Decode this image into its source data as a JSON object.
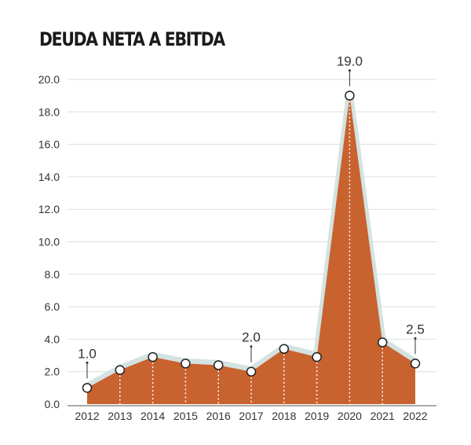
{
  "chart_data": {
    "type": "area",
    "title": "DEUDA NETA A EBITDA",
    "categories": [
      "2012",
      "2013",
      "2014",
      "2015",
      "2016",
      "2017",
      "2018",
      "2019",
      "2020",
      "2021",
      "2022"
    ],
    "values": [
      1.0,
      2.1,
      2.9,
      2.5,
      2.4,
      2.0,
      3.4,
      2.9,
      19.0,
      3.8,
      2.5
    ],
    "data_labels": [
      {
        "x": "2012",
        "text": "1.0"
      },
      {
        "x": "2017",
        "text": "2.0"
      },
      {
        "x": "2020",
        "text": "19.0"
      },
      {
        "x": "2022",
        "text": "2.5"
      }
    ],
    "yticks": [
      "0.0",
      "2.0",
      "4.0",
      "6.0",
      "8.0",
      "10.0",
      "12.0",
      "14.0",
      "16.0",
      "18.0",
      "20.0"
    ],
    "ylim": [
      0,
      20
    ],
    "grid": true,
    "colors": {
      "fill": "#c8622e",
      "halo": "#d4e2e1",
      "grid": "#dddddd"
    }
  }
}
